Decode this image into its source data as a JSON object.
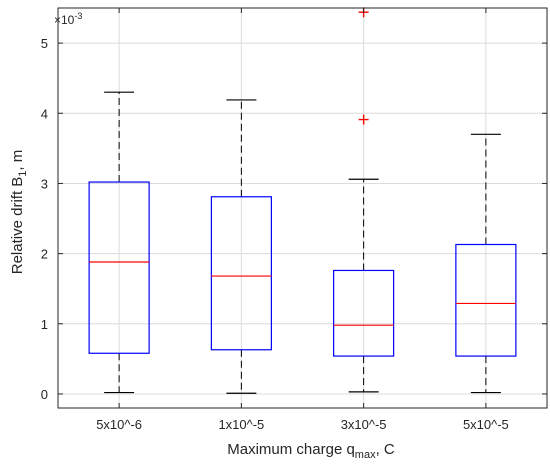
{
  "chart_data": {
    "type": "box",
    "xlabel": "Maximum charge q",
    "xlabel_sub": "max",
    "xlabel_suffix": ", C",
    "ylabel": "Relative drift B",
    "ylabel_sub": "1",
    "ylabel_suffix": ", m",
    "y_exponent_label": "×10",
    "y_exponent_power": "-3",
    "ylim": [
      -0.2,
      5.5
    ],
    "yticks": [
      0,
      1,
      2,
      3,
      4,
      5
    ],
    "grid": true,
    "categories": [
      "5x10^-6",
      "1x10^-5",
      "3x10^-5",
      "5x10^-5"
    ],
    "boxes": [
      {
        "category": "5x10^-6",
        "whisker_low": 0.02,
        "q1": 0.58,
        "median": 1.88,
        "q3": 3.02,
        "whisker_high": 4.3,
        "outliers": []
      },
      {
        "category": "1x10^-5",
        "whisker_low": 0.01,
        "q1": 0.63,
        "median": 1.68,
        "q3": 2.81,
        "whisker_high": 4.19,
        "outliers": []
      },
      {
        "category": "3x10^-5",
        "whisker_low": 0.03,
        "q1": 0.54,
        "median": 0.98,
        "q3": 1.76,
        "whisker_high": 3.06,
        "outliers": [
          3.91,
          5.44
        ]
      },
      {
        "category": "5x10^-5",
        "whisker_low": 0.02,
        "q1": 0.54,
        "median": 1.29,
        "q3": 2.13,
        "whisker_high": 3.7,
        "outliers": []
      }
    ],
    "colors": {
      "box": "#0000ff",
      "median": "#ff0000",
      "whisker": "#000000",
      "outlier": "#ff0000",
      "grid": "#dcdcdc",
      "axes": "#262626"
    }
  }
}
